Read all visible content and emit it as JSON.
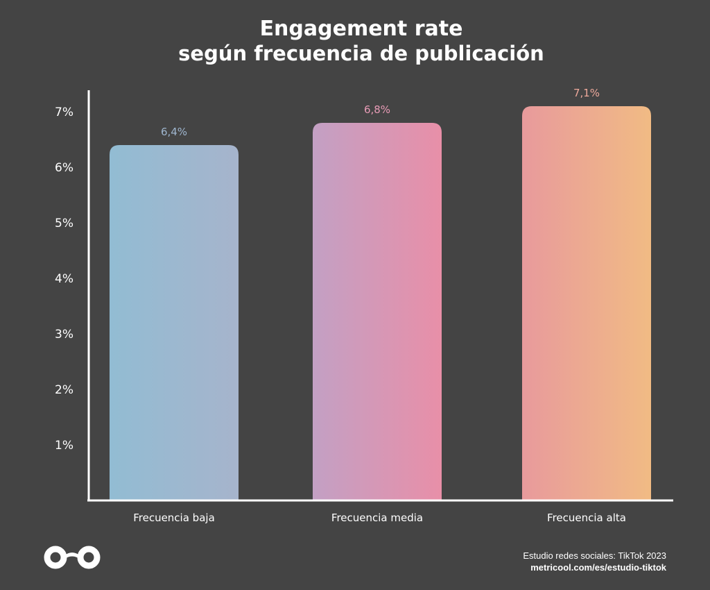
{
  "chart_data": {
    "type": "bar",
    "title": "Engagement rate",
    "subtitle": "según frecuencia de publicación",
    "categories": [
      "Frecuencia baja",
      "Frecuencia media",
      "Frecuencia alta"
    ],
    "values": [
      6.4,
      6.8,
      7.1
    ],
    "data_labels": [
      "6,4%",
      "6,8%",
      "7,1%"
    ],
    "ylim": [
      0,
      7.5
    ],
    "yticks": [
      1,
      2,
      3,
      4,
      5,
      6,
      7
    ],
    "ytick_labels": [
      "1%",
      "2%",
      "3%",
      "4%",
      "5%",
      "6%",
      "7%"
    ],
    "grid": false,
    "bar_gradients": [
      [
        "#92bcd3",
        "#a6b4cc"
      ],
      [
        "#c3a0c4",
        "#e88fa8"
      ],
      [
        "#e89a9c",
        "#f1bb84"
      ]
    ],
    "label_colors": [
      "#9fb6cf",
      "#e89bb6",
      "#eea99b"
    ]
  },
  "footer": {
    "logo_icon": "metricool-infinity-logo",
    "source_line1": "Estudio redes sociales: TikTok 2023",
    "source_line2": "metricool.com/es/estudio-tiktok"
  },
  "colors": {
    "background": "#444444",
    "axis": "#ffffff",
    "text": "#ffffff"
  }
}
